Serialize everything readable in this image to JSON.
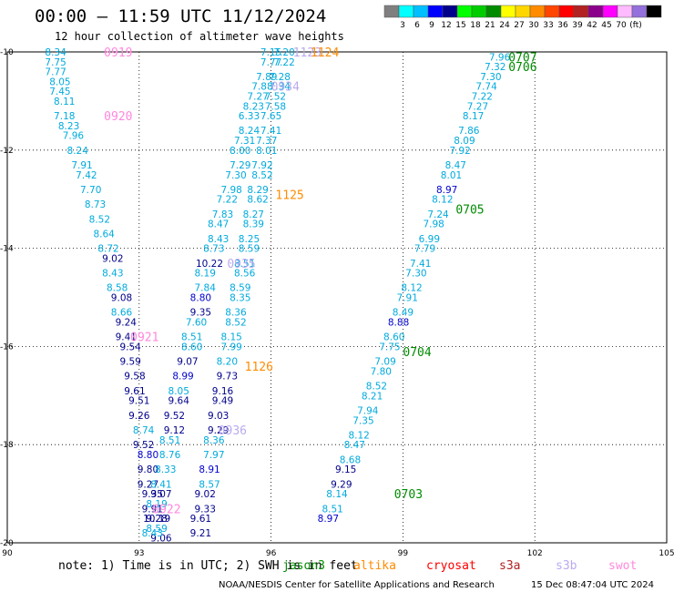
{
  "header": {
    "title": "00:00 — 11:59 UTC 11/12/2024",
    "subtitle": "12 hour collection of altimeter wave heights"
  },
  "legend": {
    "colors": [
      "#7f7f7f",
      "#00ffff",
      "#00bfff",
      "#0000ff",
      "#00008b",
      "#00ff00",
      "#00cd00",
      "#008b00",
      "#ffff00",
      "#ffd700",
      "#ff8c00",
      "#ff4500",
      "#ff0000",
      "#b22222",
      "#8b008b",
      "#ff00ff",
      "#ffbbff",
      "#9370db",
      "#000000"
    ],
    "labels": [
      "3",
      "6",
      "9",
      "12",
      "15",
      "18",
      "21",
      "24",
      "27",
      "30",
      "33",
      "36",
      "39",
      "42",
      "45",
      "70",
      "(ft)"
    ]
  },
  "footer": {
    "note": "note: 1) Time is in UTC; 2) SWH is in feet",
    "credit": "NOAA/NESDIS Center for Satellite Applications and Research",
    "timestamp": "15 Dec 08:47:04 UTC 2024",
    "satellites": [
      {
        "name": "jason3",
        "color": "#008b00"
      },
      {
        "name": "altika",
        "color": "#ff8c00"
      },
      {
        "name": "cryosat",
        "color": "#ff0000"
      },
      {
        "name": "s3a",
        "color": "#b22222"
      },
      {
        "name": "s3b",
        "color": "#bbaaee"
      },
      {
        "name": "swot",
        "color": "#ff88dd"
      }
    ]
  },
  "chart_data": {
    "type": "scatter",
    "title": "00:00 — 11:59 UTC 11/12/2024",
    "xlabel": "",
    "ylabel": "",
    "xlim": [
      90,
      105
    ],
    "ylim": [
      -20,
      -10
    ],
    "x_ticks": [
      90,
      93,
      96,
      99,
      102,
      105
    ],
    "y_ticks": [
      -10,
      -12,
      -14,
      -16,
      -18,
      -20
    ],
    "grid": true,
    "units": "ft",
    "time_labels": [
      {
        "text": "0919",
        "x": 92.2,
        "y": -10.0,
        "color": "#ff88dd"
      },
      {
        "text": "0920",
        "x": 92.2,
        "y": -11.3,
        "color": "#ff88dd"
      },
      {
        "text": "0921",
        "x": 92.8,
        "y": -15.8,
        "color": "#ff88dd"
      },
      {
        "text": "0922",
        "x": 93.3,
        "y": -19.3,
        "color": "#ff88dd"
      },
      {
        "text": "1123",
        "x": 96.5,
        "y": -10.0,
        "color": "#bbaaee"
      },
      {
        "text": "1124",
        "x": 96.9,
        "y": -10.0,
        "color": "#ff8c00"
      },
      {
        "text": "1125",
        "x": 96.1,
        "y": -12.9,
        "color": "#ff8c00"
      },
      {
        "text": "1126",
        "x": 95.4,
        "y": -16.4,
        "color": "#ff8c00"
      },
      {
        "text": "0935",
        "x": 95.0,
        "y": -14.3,
        "color": "#bbaaee"
      },
      {
        "text": "0936",
        "x": 94.8,
        "y": -17.7,
        "color": "#bbaaee"
      },
      {
        "text": "0934",
        "x": 96.0,
        "y": -10.7,
        "color": "#bbaaee"
      },
      {
        "text": "0707",
        "x": 101.4,
        "y": -10.1,
        "color": "#008b00"
      },
      {
        "text": "0706",
        "x": 101.4,
        "y": -10.3,
        "color": "#008b00"
      },
      {
        "text": "0705",
        "x": 100.2,
        "y": -13.2,
        "color": "#008b00"
      },
      {
        "text": "0704",
        "x": 99.0,
        "y": -16.1,
        "color": "#008b00"
      },
      {
        "text": "0703",
        "x": 98.8,
        "y": -19.0,
        "color": "#008b00"
      }
    ],
    "series": [
      {
        "name": "0919",
        "color_by_value": true,
        "points": [
          [
            91.1,
            -10.0,
            8.34
          ],
          [
            91.1,
            -10.2,
            7.75
          ],
          [
            91.1,
            -10.4,
            7.77
          ],
          [
            91.2,
            -10.6,
            8.05
          ],
          [
            91.2,
            -10.8,
            7.45
          ],
          [
            91.3,
            -11.0,
            8.11
          ],
          [
            91.3,
            -11.3,
            7.18
          ],
          [
            91.4,
            -11.5,
            8.23
          ],
          [
            91.5,
            -11.7,
            7.96
          ],
          [
            91.6,
            -12.0,
            8.24
          ],
          [
            91.7,
            -12.3,
            7.91
          ],
          [
            91.8,
            -12.5,
            7.42
          ],
          [
            91.9,
            -12.8,
            7.7
          ],
          [
            92.0,
            -13.1,
            8.73
          ],
          [
            92.1,
            -13.4,
            8.52
          ],
          [
            92.2,
            -13.7,
            8.64
          ],
          [
            92.3,
            -14.0,
            8.72
          ],
          [
            92.4,
            -14.2,
            9.02
          ],
          [
            92.4,
            -14.5,
            8.43
          ],
          [
            92.5,
            -14.8,
            8.58
          ],
          [
            92.6,
            -15.0,
            9.08
          ],
          [
            92.6,
            -15.3,
            8.66
          ],
          [
            92.7,
            -15.5,
            9.24
          ],
          [
            92.7,
            -15.8,
            9.41
          ],
          [
            92.8,
            -16.0,
            9.54
          ],
          [
            92.8,
            -16.3,
            9.59
          ],
          [
            92.9,
            -16.6,
            9.58
          ],
          [
            92.9,
            -16.9,
            9.61
          ],
          [
            93.0,
            -17.1,
            9.51
          ],
          [
            93.0,
            -17.4,
            9.26
          ],
          [
            93.1,
            -17.7,
            8.74
          ],
          [
            93.1,
            -18.0,
            9.52
          ],
          [
            93.2,
            -18.2,
            8.8
          ],
          [
            93.2,
            -18.5,
            9.8
          ],
          [
            93.2,
            -18.8,
            9.27
          ],
          [
            93.3,
            -19.0,
            9.35
          ],
          [
            93.3,
            -19.3,
            9.91
          ],
          [
            93.4,
            -19.5,
            9.28
          ],
          [
            93.4,
            -19.7,
            8.59
          ],
          [
            93.5,
            -19.9,
            9.06
          ]
        ]
      },
      {
        "name": "1125",
        "color_by_value": true,
        "points": [
          [
            96.0,
            -10.0,
            7.15
          ],
          [
            96.0,
            -10.2,
            7.77
          ],
          [
            95.9,
            -10.5,
            7.89
          ],
          [
            95.8,
            -10.7,
            7.88
          ],
          [
            95.7,
            -10.9,
            7.27
          ],
          [
            95.6,
            -11.1,
            8.23
          ],
          [
            95.5,
            -11.3,
            6.33
          ],
          [
            95.5,
            -11.6,
            8.24
          ],
          [
            95.4,
            -11.8,
            7.31
          ],
          [
            95.3,
            -12.0,
            8.0
          ],
          [
            95.3,
            -12.3,
            7.29
          ],
          [
            95.2,
            -12.5,
            7.3
          ],
          [
            95.1,
            -12.8,
            7.98
          ],
          [
            95.0,
            -13.0,
            7.22
          ],
          [
            94.9,
            -13.3,
            7.83
          ],
          [
            94.8,
            -13.5,
            8.47
          ],
          [
            94.8,
            -13.8,
            8.43
          ],
          [
            94.7,
            -14.0,
            8.73
          ],
          [
            94.6,
            -14.3,
            10.22
          ],
          [
            94.5,
            -14.5,
            8.19
          ],
          [
            94.5,
            -14.8,
            7.84
          ],
          [
            94.4,
            -15.0,
            8.8
          ],
          [
            94.4,
            -15.3,
            9.35
          ],
          [
            94.3,
            -15.5,
            7.6
          ],
          [
            94.2,
            -15.8,
            8.51
          ],
          [
            94.2,
            -16.0,
            8.6
          ],
          [
            94.1,
            -16.3,
            9.07
          ],
          [
            94.0,
            -16.6,
            8.99
          ],
          [
            93.9,
            -16.9,
            8.05
          ],
          [
            93.9,
            -17.1,
            9.64
          ],
          [
            93.8,
            -17.4,
            9.52
          ],
          [
            93.8,
            -17.7,
            9.12
          ],
          [
            93.7,
            -17.9,
            8.51
          ],
          [
            93.7,
            -18.2,
            8.76
          ],
          [
            93.6,
            -18.5,
            8.33
          ],
          [
            93.5,
            -18.8,
            8.41
          ],
          [
            93.5,
            -19.0,
            9.07
          ],
          [
            93.4,
            -19.2,
            8.19
          ],
          [
            93.4,
            -19.5,
            10.19
          ],
          [
            93.3,
            -19.8,
            8.43
          ]
        ]
      },
      {
        "name": "1126",
        "color_by_value": true,
        "points": [
          [
            96.3,
            -10.0,
            7.2
          ],
          [
            96.3,
            -10.2,
            7.22
          ],
          [
            96.2,
            -10.5,
            7.28
          ],
          [
            96.2,
            -10.7,
            7.34
          ],
          [
            96.1,
            -10.9,
            7.52
          ],
          [
            96.1,
            -11.1,
            7.58
          ],
          [
            96.0,
            -11.3,
            7.65
          ],
          [
            96.0,
            -11.6,
            7.41
          ],
          [
            95.9,
            -11.8,
            7.37
          ],
          [
            95.9,
            -12.0,
            8.01
          ],
          [
            95.8,
            -12.3,
            7.92
          ],
          [
            95.8,
            -12.5,
            8.52
          ],
          [
            95.7,
            -12.8,
            8.29
          ],
          [
            95.7,
            -13.0,
            8.62
          ],
          [
            95.6,
            -13.3,
            8.27
          ],
          [
            95.6,
            -13.5,
            8.39
          ],
          [
            95.5,
            -13.8,
            8.25
          ],
          [
            95.5,
            -14.0,
            8.59
          ],
          [
            95.4,
            -14.3,
            8.51
          ],
          [
            95.4,
            -14.5,
            8.56
          ],
          [
            95.3,
            -14.8,
            8.59
          ],
          [
            95.3,
            -15.0,
            8.35
          ],
          [
            95.2,
            -15.3,
            8.36
          ],
          [
            95.2,
            -15.5,
            8.52
          ],
          [
            95.1,
            -15.8,
            8.15
          ],
          [
            95.1,
            -16.0,
            7.99
          ],
          [
            95.0,
            -16.3,
            8.2
          ],
          [
            95.0,
            -16.6,
            9.73
          ],
          [
            94.9,
            -16.9,
            9.16
          ],
          [
            94.9,
            -17.1,
            9.49
          ],
          [
            94.8,
            -17.4,
            9.03
          ],
          [
            94.8,
            -17.7,
            9.29
          ],
          [
            94.7,
            -17.9,
            8.36
          ],
          [
            94.7,
            -18.2,
            7.97
          ],
          [
            94.6,
            -18.5,
            8.91
          ],
          [
            94.6,
            -18.8,
            8.57
          ],
          [
            94.5,
            -19.0,
            9.02
          ],
          [
            94.5,
            -19.3,
            9.33
          ],
          [
            94.4,
            -19.5,
            9.61
          ],
          [
            94.4,
            -19.8,
            9.21
          ]
        ]
      },
      {
        "name": "0703-0707",
        "color_by_value": true,
        "points": [
          [
            101.2,
            -10.1,
            7.96
          ],
          [
            101.1,
            -10.3,
            7.32
          ],
          [
            101.0,
            -10.5,
            7.3
          ],
          [
            100.9,
            -10.7,
            7.74
          ],
          [
            100.8,
            -10.9,
            7.22
          ],
          [
            100.7,
            -11.1,
            7.27
          ],
          [
            100.6,
            -11.3,
            8.17
          ],
          [
            100.5,
            -11.6,
            7.86
          ],
          [
            100.4,
            -11.8,
            8.09
          ],
          [
            100.3,
            -12.0,
            7.92
          ],
          [
            100.2,
            -12.3,
            8.47
          ],
          [
            100.1,
            -12.5,
            8.01
          ],
          [
            100.0,
            -12.8,
            8.97
          ],
          [
            99.9,
            -13.0,
            8.12
          ],
          [
            99.8,
            -13.3,
            7.24
          ],
          [
            99.7,
            -13.5,
            7.98
          ],
          [
            99.6,
            -13.8,
            6.99
          ],
          [
            99.5,
            -14.0,
            7.79
          ],
          [
            99.4,
            -14.3,
            7.41
          ],
          [
            99.3,
            -14.5,
            7.3
          ],
          [
            99.2,
            -14.8,
            8.12
          ],
          [
            99.1,
            -15.0,
            7.91
          ],
          [
            99.0,
            -15.3,
            8.49
          ],
          [
            98.9,
            -15.5,
            8.88
          ],
          [
            98.8,
            -15.8,
            8.6
          ],
          [
            98.7,
            -16.0,
            7.75
          ],
          [
            98.6,
            -16.3,
            7.09
          ],
          [
            98.5,
            -16.5,
            7.8
          ],
          [
            98.4,
            -16.8,
            8.52
          ],
          [
            98.3,
            -17.0,
            8.21
          ],
          [
            98.2,
            -17.3,
            7.94
          ],
          [
            98.1,
            -17.5,
            7.35
          ],
          [
            98.0,
            -17.8,
            8.12
          ],
          [
            97.9,
            -18.0,
            8.47
          ],
          [
            97.8,
            -18.3,
            8.68
          ],
          [
            97.7,
            -18.5,
            9.15
          ],
          [
            97.6,
            -18.8,
            9.29
          ],
          [
            97.5,
            -19.0,
            8.14
          ],
          [
            97.4,
            -19.3,
            8.51
          ],
          [
            97.3,
            -19.5,
            8.97
          ]
        ]
      }
    ]
  }
}
